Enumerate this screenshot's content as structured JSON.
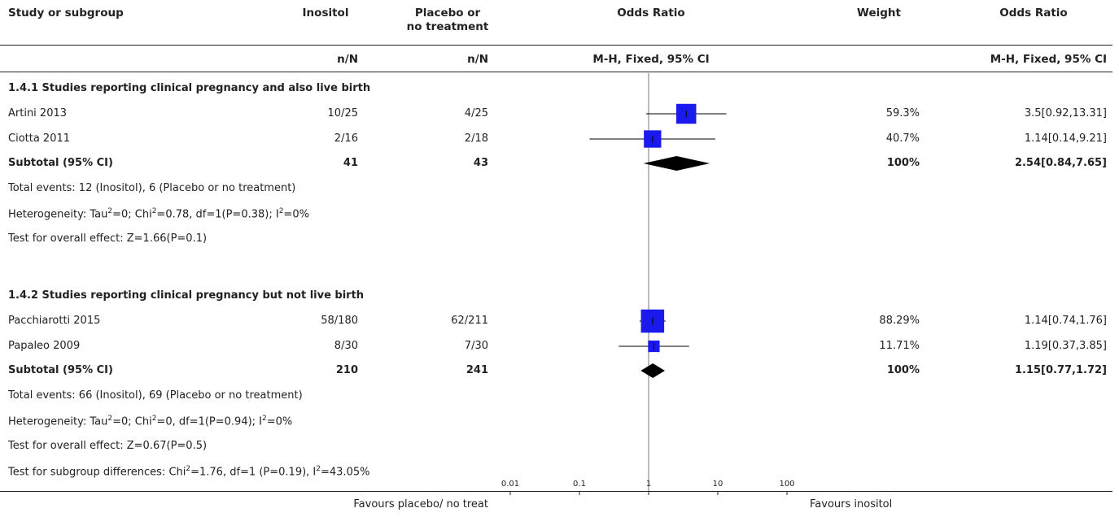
{
  "header": {
    "study": "Study or subgroup",
    "inositol": "Inositol",
    "placebo_l1": "Placebo or",
    "placebo_l2": "no treatment",
    "or_plot": "Odds Ratio",
    "weight": "Weight",
    "or_text": "Odds Ratio",
    "nN1": "n/N",
    "nN2": "n/N",
    "method_plot": "M-H, Fixed, 95% CI",
    "method_text": "M-H, Fixed, 95% CI"
  },
  "groups": [
    {
      "title": "1.4.1 Studies reporting clinical pregnancy and also live birth",
      "studies": [
        {
          "name": "Artini 2013",
          "inositol": "10/25",
          "placebo": "4/25",
          "weight": "59.3%",
          "ci_text": "3.5[0.92,13.31]",
          "or": 3.5,
          "lo": 0.92,
          "hi": 13.31,
          "w": 59.3
        },
        {
          "name": "Ciotta 2011",
          "inositol": "2/16",
          "placebo": "2/18",
          "weight": "40.7%",
          "ci_text": "1.14[0.14,9.21]",
          "or": 1.14,
          "lo": 0.14,
          "hi": 9.21,
          "w": 40.7
        }
      ],
      "subtotal": {
        "label": "Subtotal (95% CI)",
        "inositol": "41",
        "placebo": "43",
        "weight": "100%",
        "ci_text": "2.54[0.84,7.65]",
        "or": 2.54,
        "lo": 0.84,
        "hi": 7.65
      },
      "events": "Total events: 12 (Inositol), 6 (Placebo or no treatment)",
      "het_a": "Heterogeneity: Tau",
      "het_b": "=0; Chi",
      "het_c": "=0.78, df=1(P=0.38); I",
      "het_d": "=0%",
      "overall": "Test for overall effect: Z=1.66(P=0.1)"
    },
    {
      "title": "1.4.2 Studies reporting clinical pregnancy but not live birth",
      "studies": [
        {
          "name": "Pacchiarotti 2015",
          "inositol": "58/180",
          "placebo": "62/211",
          "weight": "88.29%",
          "ci_text": "1.14[0.74,1.76]",
          "or": 1.14,
          "lo": 0.74,
          "hi": 1.76,
          "w": 88.29
        },
        {
          "name": "Papaleo 2009",
          "inositol": "8/30",
          "placebo": "7/30",
          "weight": "11.71%",
          "ci_text": "1.19[0.37,3.85]",
          "or": 1.19,
          "lo": 0.37,
          "hi": 3.85,
          "w": 11.71
        }
      ],
      "subtotal": {
        "label": "Subtotal (95% CI)",
        "inositol": "210",
        "placebo": "241",
        "weight": "100%",
        "ci_text": "1.15[0.77,1.72]",
        "or": 1.15,
        "lo": 0.77,
        "hi": 1.72
      },
      "events": "Total events: 66 (Inositol), 69 (Placebo or no treatment)",
      "het_a": "Heterogeneity: Tau",
      "het_b": "=0; Chi",
      "het_c": "=0, df=1(P=0.94); I",
      "het_d": "=0%",
      "overall": "Test for overall effect: Z=0.67(P=0.5)"
    }
  ],
  "subgroup_test_a": "Test for subgroup differences: Chi",
  "subgroup_test_b": "=1.76, df=1 (P=0.19), I",
  "subgroup_test_c": "=43.05%",
  "sup2": "2",
  "footer": {
    "left": "Favours placebo/ no treat",
    "right": "Favours inositol"
  },
  "chart_data": {
    "type": "forest",
    "x_scale": "log",
    "xlim": [
      0.01,
      100
    ],
    "ticks": [
      0.01,
      0.1,
      1,
      10,
      100
    ],
    "tick_labels": [
      "0.01",
      "0.1",
      "1",
      "10",
      "100"
    ],
    "colors": {
      "box": "#1a1aee",
      "line": "#000000",
      "diamond": "#000000",
      "axis": "#777777"
    }
  }
}
